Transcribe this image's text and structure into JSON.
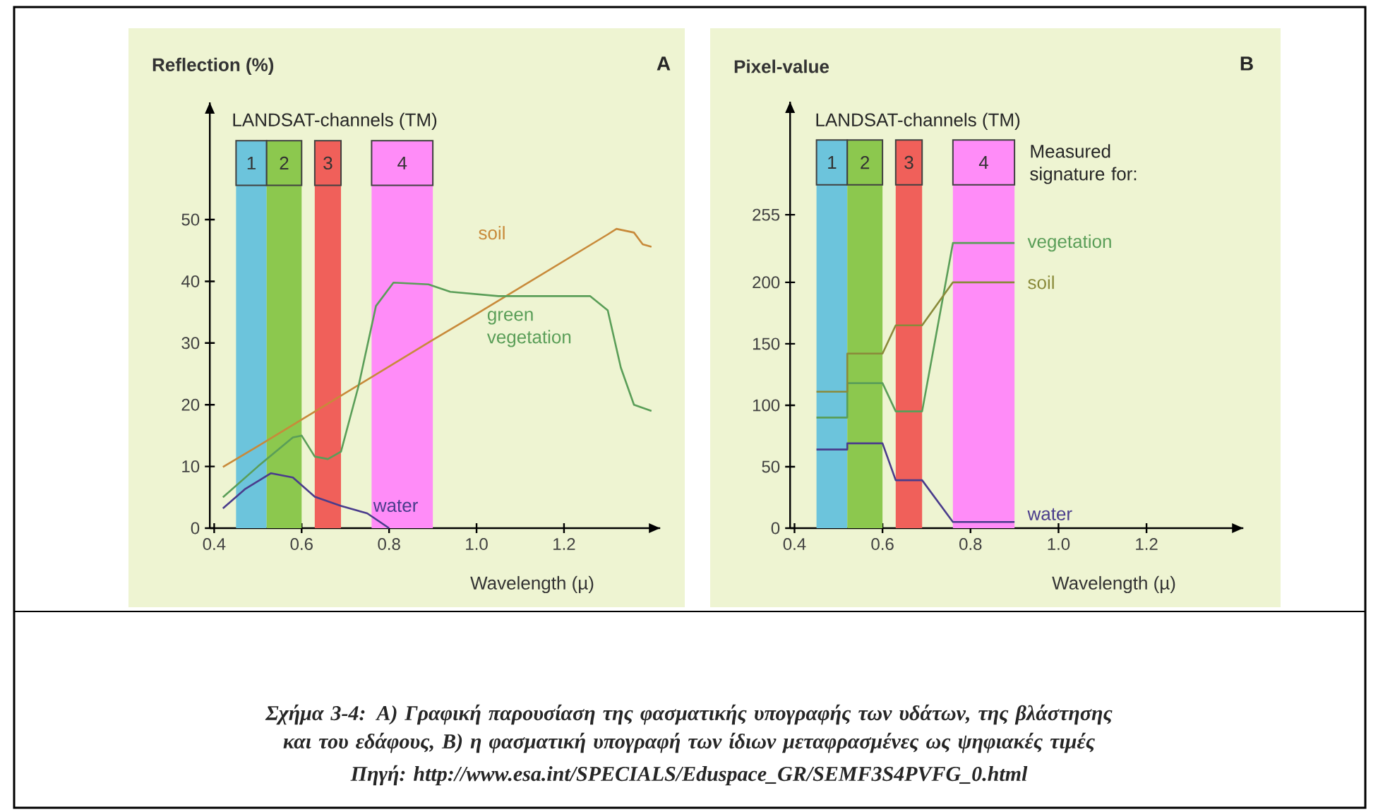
{
  "chart_data": [
    {
      "type": "line",
      "xlabel": "Wavelength (µ)",
      "ylabel": "Reflection (%)",
      "xlim": [
        0.39,
        1.42
      ],
      "ylim": [
        0,
        69
      ],
      "xticks": [
        0.4,
        0.6,
        0.8,
        {
          "value": 1,
          "label": "1.0"
        },
        1.2
      ],
      "yticks": [
        0,
        10,
        20,
        30,
        40,
        50
      ],
      "bands": [
        {
          "axis": "x",
          "from": 0.45,
          "to": 0.52,
          "label": "1",
          "color": "#6cc4dc"
        },
        {
          "axis": "x",
          "from": 0.52,
          "to": 0.6,
          "label": "2",
          "color": "#8cc84e"
        },
        {
          "axis": "x",
          "from": 0.63,
          "to": 0.69,
          "label": "3",
          "color": "#f0605a"
        },
        {
          "axis": "x",
          "from": 0.76,
          "to": 0.9,
          "label": "4",
          "color": "#ff8cf8"
        }
      ],
      "series": [
        {
          "name": "soil",
          "color": "#c88a3a",
          "x": [
            0.42,
            0.5,
            0.6,
            0.7,
            0.8,
            0.9,
            1.0,
            1.1,
            1.2,
            1.3,
            1.32,
            1.36,
            1.38,
            1.4
          ],
          "values": [
            9.9,
            13.3,
            17.6,
            21.9,
            26.2,
            30.5,
            34.7,
            39.0,
            43.3,
            47.6,
            48.5,
            47.9,
            46.0,
            45.6
          ]
        },
        {
          "name": "green vegetation",
          "color": "#5a9e58",
          "x": [
            0.42,
            0.5,
            0.58,
            0.6,
            0.63,
            0.66,
            0.69,
            0.73,
            0.77,
            0.81,
            0.89,
            0.94,
            1.05,
            1.26,
            1.3,
            1.33,
            1.36,
            1.4
          ],
          "values": [
            5,
            10,
            14.7,
            15,
            11.6,
            11.2,
            12.4,
            23,
            36,
            39.8,
            39.5,
            38.3,
            37.6,
            37.6,
            35.3,
            26,
            20,
            19
          ]
        },
        {
          "name": "water",
          "color": "#4a3c8c",
          "x": [
            0.42,
            0.47,
            0.53,
            0.58,
            0.63,
            0.69,
            0.75,
            0.8
          ],
          "values": [
            3.2,
            6.3,
            8.9,
            8.2,
            5.1,
            3.6,
            2.4,
            0
          ]
        }
      ],
      "annotations": [
        "LANDSAT-channels (TM)",
        "A",
        "Σχήμα 3-4: A) Γραφική παρουσίαση της φασματικής υπογραφής των υδάτων, της βλάστησης και του εδάφους, B) η φασματική υπογραφή των ίδιων μεταφρασμένες ως ψηφιακές τιμές",
        "Πηγή: http://www.esa.int/SPECIALS/Eduspace_GR/SEMF3S4PVFG_0.html"
      ]
    },
    {
      "type": "line",
      "xlabel": "Wavelength (µ)",
      "ylabel": "Pixel-value",
      "xlim": [
        0.39,
        1.42
      ],
      "ylim": [
        0,
        347
      ],
      "xticks": [
        0.4,
        0.6,
        0.8,
        {
          "value": 1,
          "label": "1.0"
        },
        1.2
      ],
      "yticks": [
        0,
        50,
        100,
        150,
        200,
        255
      ],
      "bands": [
        {
          "axis": "x",
          "from": 0.45,
          "to": 0.52,
          "label": "1",
          "color": "#6cc4dc"
        },
        {
          "axis": "x",
          "from": 0.52,
          "to": 0.6,
          "label": "2",
          "color": "#8cc84e"
        },
        {
          "axis": "x",
          "from": 0.63,
          "to": 0.69,
          "label": "3",
          "color": "#f0605a"
        },
        {
          "axis": "x",
          "from": 0.76,
          "to": 0.9,
          "label": "4",
          "color": "#ff8cf8"
        }
      ],
      "series": [
        {
          "name": "vegetation",
          "color": "#5a9e58",
          "x": [
            0.45,
            0.52,
            0.52,
            0.6,
            0.63,
            0.69,
            0.76,
            0.9
          ],
          "values": [
            90,
            90,
            118,
            118,
            95,
            95,
            232,
            232
          ]
        },
        {
          "name": "soil",
          "color": "#8a8a3a",
          "x": [
            0.45,
            0.52,
            0.52,
            0.6,
            0.63,
            0.69,
            0.76,
            0.9
          ],
          "values": [
            111,
            111,
            142,
            142,
            165,
            165,
            200,
            200
          ]
        },
        {
          "name": "water",
          "color": "#4a3c8c",
          "x": [
            0.45,
            0.52,
            0.52,
            0.6,
            0.63,
            0.69,
            0.76,
            0.9
          ],
          "values": [
            64,
            64,
            69,
            69,
            39,
            39,
            5,
            5
          ]
        }
      ],
      "annotations": [
        "LANDSAT-channels (TM)",
        "B",
        "Measured signature for:"
      ]
    }
  ]
}
